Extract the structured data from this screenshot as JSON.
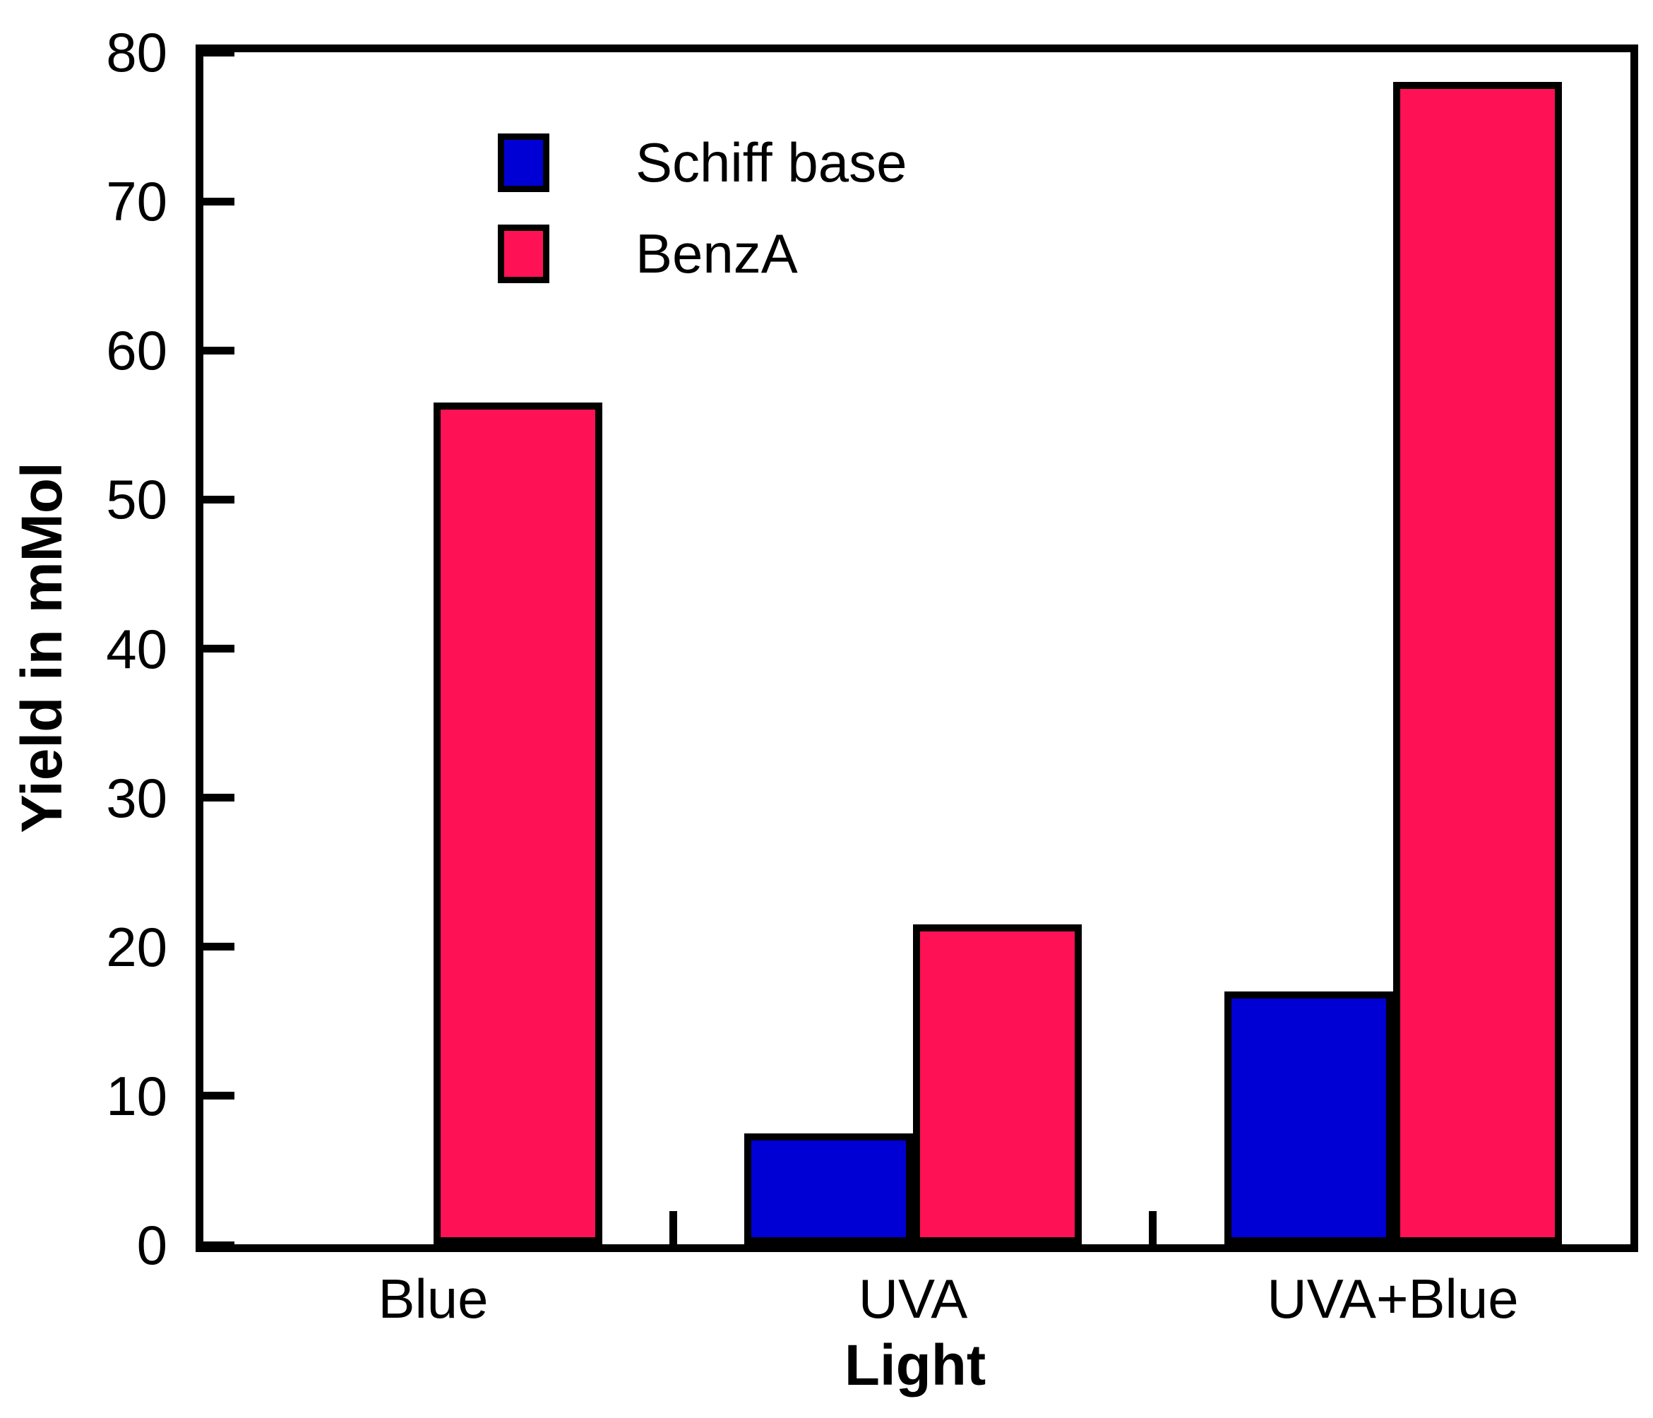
{
  "chart_data": {
    "type": "bar",
    "title": "",
    "categories": [
      "Blue",
      "UVA",
      "UVA+Blue"
    ],
    "series": [
      {
        "name": "Schiff base",
        "color": "#0000D4",
        "values": [
          0,
          7.5,
          17
        ]
      },
      {
        "name": "BenzA",
        "color": "#FF1155",
        "values": [
          56.5,
          21.5,
          78
        ]
      }
    ],
    "xlabel": "Light",
    "ylabel": "Yield in mMol",
    "ylim": [
      0,
      80
    ],
    "ytick_step": 10,
    "yticks": [
      "0",
      "10",
      "20",
      "30",
      "40",
      "50",
      "60",
      "70",
      "80"
    ],
    "grid": false,
    "frame": true,
    "tick_direction": "in",
    "legend_position": "upper-left-inside",
    "bar_border_color": "#000000",
    "text_color": "#000000",
    "background_color": "#FFFFFF"
  }
}
